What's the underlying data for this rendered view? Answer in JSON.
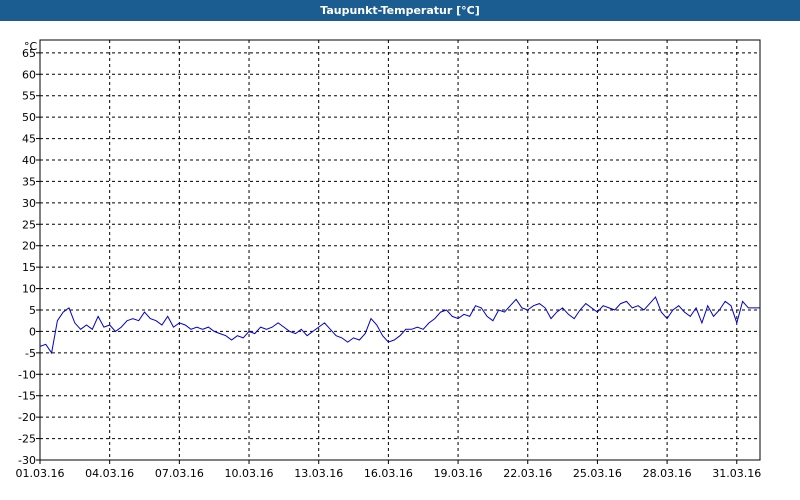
{
  "window": {
    "title": "Taupunkt-Temperatur [°C]"
  },
  "colors": {
    "titlebar": "#1c5d91",
    "series_line": "#0000cc",
    "grid": "#000000",
    "frame": "#000000"
  },
  "chart_data": {
    "type": "line",
    "title": "Taupunkt-Temperatur [°C]",
    "ylabel": "°C",
    "xlabel": "",
    "ylim": [
      -30,
      68
    ],
    "xlim": [
      "01.03.16",
      "01.04.16"
    ],
    "grid": true,
    "y_ticks": [
      65,
      60,
      55,
      50,
      45,
      40,
      35,
      30,
      25,
      20,
      15,
      10,
      5,
      0,
      -5,
      -10,
      -15,
      -20,
      -25,
      -30
    ],
    "x_ticks": [
      "01.03.16",
      "04.03.16",
      "07.03.16",
      "10.03.16",
      "13.03.16",
      "16.03.16",
      "19.03.16",
      "22.03.16",
      "25.03.16",
      "28.03.16",
      "31.03.16"
    ],
    "series": [
      {
        "x": [
          "01.03.16 00:00",
          "01.03.16 06:00",
          "01.03.16 12:00",
          "01.03.16 18:00",
          "02.03.16 00:00",
          "02.03.16 06:00",
          "02.03.16 12:00",
          "02.03.16 18:00",
          "03.03.16 00:00",
          "03.03.16 06:00",
          "03.03.16 12:00",
          "03.03.16 18:00",
          "04.03.16 00:00",
          "04.03.16 06:00",
          "04.03.16 12:00",
          "04.03.16 18:00",
          "05.03.16 00:00",
          "05.03.16 06:00",
          "05.03.16 12:00",
          "05.03.16 18:00",
          "06.03.16 00:00",
          "06.03.16 06:00",
          "06.03.16 12:00",
          "06.03.16 18:00",
          "07.03.16 00:00",
          "07.03.16 06:00",
          "07.03.16 12:00",
          "07.03.16 18:00",
          "08.03.16 00:00",
          "08.03.16 06:00",
          "08.03.16 12:00",
          "08.03.16 18:00",
          "09.03.16 00:00",
          "09.03.16 06:00",
          "09.03.16 12:00",
          "09.03.16 18:00",
          "10.03.16 00:00",
          "10.03.16 06:00",
          "10.03.16 12:00",
          "10.03.16 18:00",
          "11.03.16 00:00",
          "11.03.16 06:00",
          "11.03.16 12:00",
          "11.03.16 18:00",
          "12.03.16 00:00",
          "12.03.16 06:00",
          "12.03.16 12:00",
          "12.03.16 18:00",
          "13.03.16 00:00",
          "13.03.16 06:00",
          "13.03.16 12:00",
          "13.03.16 18:00",
          "14.03.16 00:00",
          "14.03.16 06:00",
          "14.03.16 12:00",
          "14.03.16 18:00",
          "15.03.16 00:00",
          "15.03.16 06:00",
          "15.03.16 12:00",
          "15.03.16 18:00",
          "16.03.16 00:00",
          "16.03.16 06:00",
          "16.03.16 12:00",
          "16.03.16 18:00",
          "17.03.16 00:00",
          "17.03.16 06:00",
          "17.03.16 12:00",
          "17.03.16 18:00",
          "18.03.16 00:00",
          "18.03.16 06:00",
          "18.03.16 12:00",
          "18.03.16 18:00",
          "19.03.16 00:00",
          "19.03.16 06:00",
          "19.03.16 12:00",
          "19.03.16 18:00",
          "20.03.16 00:00",
          "20.03.16 06:00",
          "20.03.16 12:00",
          "20.03.16 18:00",
          "21.03.16 00:00",
          "21.03.16 06:00",
          "21.03.16 12:00",
          "21.03.16 18:00",
          "22.03.16 00:00",
          "22.03.16 06:00",
          "22.03.16 12:00",
          "22.03.16 18:00",
          "23.03.16 00:00",
          "23.03.16 06:00",
          "23.03.16 12:00",
          "23.03.16 18:00",
          "24.03.16 00:00",
          "24.03.16 06:00",
          "24.03.16 12:00",
          "24.03.16 18:00",
          "25.03.16 00:00",
          "25.03.16 06:00",
          "25.03.16 12:00",
          "25.03.16 18:00",
          "26.03.16 00:00",
          "26.03.16 06:00",
          "26.03.16 12:00",
          "26.03.16 18:00",
          "27.03.16 00:00",
          "27.03.16 06:00",
          "27.03.16 12:00",
          "27.03.16 18:00",
          "28.03.16 00:00",
          "28.03.16 06:00",
          "28.03.16 12:00",
          "28.03.16 18:00",
          "29.03.16 00:00",
          "29.03.16 06:00",
          "29.03.16 12:00",
          "29.03.16 18:00",
          "30.03.16 00:00",
          "30.03.16 06:00",
          "30.03.16 12:00",
          "30.03.16 18:00",
          "31.03.16 00:00",
          "31.03.16 06:00",
          "31.03.16 12:00",
          "31.03.16 18:00",
          "01.04.16 00:00"
        ],
        "values": [
          -3.5,
          -3.0,
          -5.0,
          2.5,
          4.5,
          5.5,
          2.0,
          0.5,
          1.5,
          0.5,
          3.5,
          1.0,
          1.5,
          0.0,
          1.0,
          2.5,
          3.0,
          2.5,
          4.5,
          3.0,
          2.5,
          1.5,
          3.5,
          1.0,
          2.0,
          1.5,
          0.5,
          1.0,
          0.5,
          1.0,
          0.0,
          -0.5,
          -1.0,
          -2.0,
          -1.0,
          -1.5,
          0.0,
          -0.5,
          1.0,
          0.5,
          1.0,
          2.0,
          1.0,
          0.0,
          -0.5,
          0.5,
          -1.0,
          0.0,
          1.0,
          2.0,
          0.5,
          -1.0,
          -1.5,
          -2.5,
          -1.5,
          -2.0,
          -0.5,
          3.0,
          1.5,
          -1.0,
          -2.5,
          -2.0,
          -1.0,
          0.5,
          0.5,
          1.0,
          0.5,
          2.0,
          3.0,
          4.5,
          5.0,
          3.5,
          3.0,
          4.0,
          3.5,
          6.0,
          5.5,
          3.5,
          2.5,
          5.0,
          4.5,
          6.0,
          7.5,
          5.5,
          5.0,
          6.0,
          6.5,
          5.5,
          3.0,
          4.5,
          5.5,
          4.0,
          3.0,
          5.0,
          6.5,
          5.5,
          4.5,
          6.0,
          5.5,
          5.0,
          6.5,
          7.0,
          5.5,
          6.0,
          5.0,
          6.5,
          8.0,
          4.5,
          3.0,
          5.0,
          6.0,
          4.5,
          3.5,
          5.5,
          2.0,
          6.0,
          3.5,
          5.0,
          7.0,
          6.0,
          2.0,
          7.0,
          5.5,
          5.5,
          5.5
        ]
      }
    ]
  }
}
